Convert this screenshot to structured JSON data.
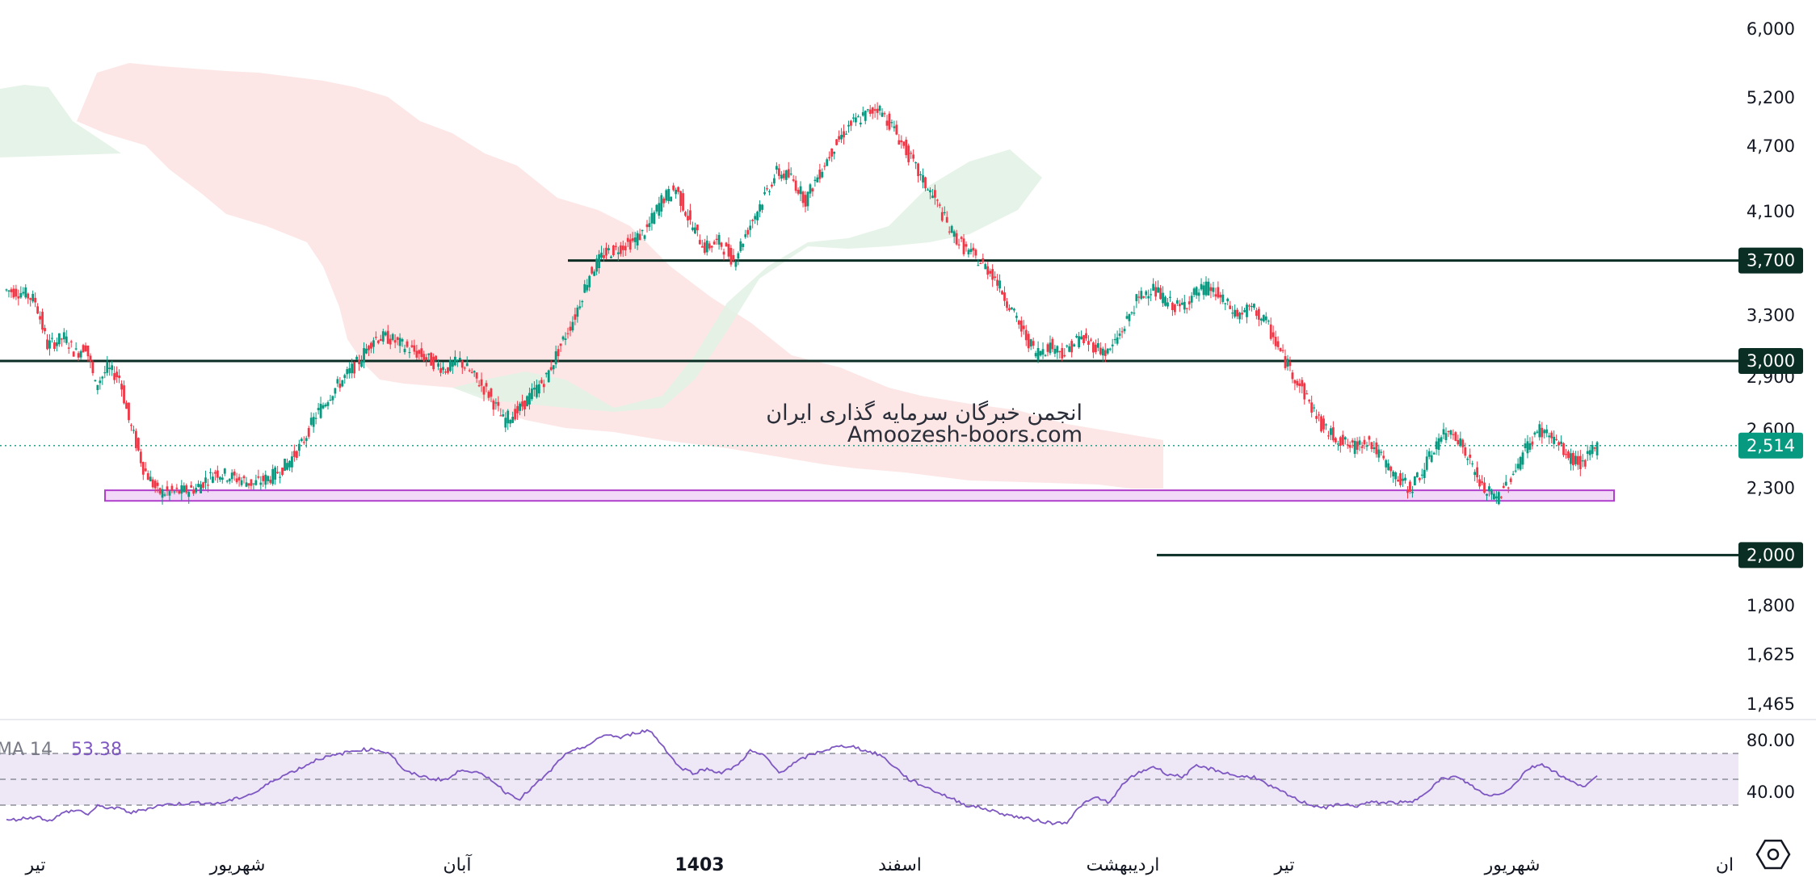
{
  "chart_data": {
    "type": "candlestick",
    "title": "",
    "watermark": {
      "line1": "انجمن خبرگان سرمایه گذاری ایران",
      "line2": "Amoozesh-boors.com"
    },
    "y_axis": {
      "scale": "log",
      "range": [
        1400,
        6300
      ],
      "ticks": [
        "6,000",
        "5,200",
        "4,700",
        "4,100",
        "3,300",
        "2,900",
        "2,600",
        "2,300",
        "1,800",
        "1,625",
        "1,465"
      ]
    },
    "x_axis": {
      "labels": [
        "تیر",
        "شهریور",
        "آبان",
        "1403",
        "اسفند",
        "اردیبهشت",
        "تیر",
        "شهریور",
        "ان"
      ],
      "bold_label": "1403"
    },
    "last_price": {
      "value": 2514,
      "label": "2,514",
      "color": "#089981"
    },
    "levels": [
      {
        "value": 3700,
        "label": "3,700"
      },
      {
        "value": 3000,
        "label": "3,000"
      },
      {
        "value": 2000,
        "label": "2,000"
      }
    ],
    "support_zone": {
      "low": 2240,
      "high": 2290,
      "color": "#e040fb"
    },
    "colors": {
      "up": "#089981",
      "down": "#f23645",
      "level": "#0b2e24",
      "cloud_bull": "#e3f2e5",
      "cloud_bear": "#fde3e3",
      "rsi_line": "#7e57c2",
      "rsi_band": "#ede7f6"
    },
    "price_series": [
      [
        0,
        3480
      ],
      [
        8,
        3460
      ],
      [
        13,
        3400
      ],
      [
        18,
        3100
      ],
      [
        25,
        3150
      ],
      [
        30,
        3050
      ],
      [
        34,
        3100
      ],
      [
        38,
        2850
      ],
      [
        43,
        2950
      ],
      [
        48,
        2900
      ],
      [
        52,
        2650
      ],
      [
        58,
        2400
      ],
      [
        64,
        2280
      ],
      [
        72,
        2280
      ],
      [
        80,
        2300
      ],
      [
        88,
        2380
      ],
      [
        96,
        2350
      ],
      [
        104,
        2320
      ],
      [
        112,
        2360
      ],
      [
        118,
        2420
      ],
      [
        124,
        2520
      ],
      [
        130,
        2680
      ],
      [
        136,
        2800
      ],
      [
        142,
        2900
      ],
      [
        148,
        3000
      ],
      [
        154,
        3150
      ],
      [
        160,
        3150
      ],
      [
        166,
        3100
      ],
      [
        172,
        3050
      ],
      [
        178,
        3000
      ],
      [
        184,
        2950
      ],
      [
        190,
        3000
      ],
      [
        196,
        2900
      ],
      [
        202,
        2800
      ],
      [
        208,
        2650
      ],
      [
        214,
        2700
      ],
      [
        220,
        2800
      ],
      [
        226,
        2900
      ],
      [
        232,
        3100
      ],
      [
        238,
        3300
      ],
      [
        244,
        3600
      ],
      [
        250,
        3750
      ],
      [
        256,
        3800
      ],
      [
        262,
        3850
      ],
      [
        268,
        3950
      ],
      [
        274,
        4200
      ],
      [
        280,
        4300
      ],
      [
        286,
        4000
      ],
      [
        292,
        3800
      ],
      [
        298,
        3850
      ],
      [
        304,
        3700
      ],
      [
        310,
        3950
      ],
      [
        316,
        4200
      ],
      [
        322,
        4450
      ],
      [
        328,
        4400
      ],
      [
        334,
        4200
      ],
      [
        340,
        4450
      ],
      [
        346,
        4700
      ],
      [
        352,
        4900
      ],
      [
        358,
        5000
      ],
      [
        364,
        5100
      ],
      [
        370,
        4900
      ],
      [
        376,
        4650
      ],
      [
        382,
        4400
      ],
      [
        388,
        4200
      ],
      [
        394,
        3950
      ],
      [
        400,
        3800
      ],
      [
        406,
        3700
      ],
      [
        412,
        3600
      ],
      [
        418,
        3400
      ],
      [
        424,
        3200
      ],
      [
        430,
        3050
      ],
      [
        436,
        3100
      ],
      [
        442,
        3050
      ],
      [
        448,
        3150
      ],
      [
        454,
        3100
      ],
      [
        460,
        3050
      ],
      [
        466,
        3200
      ],
      [
        472,
        3400
      ],
      [
        478,
        3500
      ],
      [
        484,
        3400
      ],
      [
        490,
        3350
      ],
      [
        496,
        3450
      ],
      [
        502,
        3500
      ],
      [
        508,
        3400
      ],
      [
        514,
        3300
      ],
      [
        520,
        3350
      ],
      [
        526,
        3250
      ],
      [
        532,
        3050
      ],
      [
        538,
        2900
      ],
      [
        544,
        2750
      ],
      [
        550,
        2600
      ],
      [
        556,
        2550
      ],
      [
        562,
        2500
      ],
      [
        568,
        2550
      ],
      [
        574,
        2450
      ],
      [
        580,
        2350
      ],
      [
        586,
        2300
      ],
      [
        592,
        2400
      ],
      [
        598,
        2550
      ],
      [
        604,
        2600
      ],
      [
        610,
        2450
      ],
      [
        616,
        2300
      ],
      [
        622,
        2250
      ],
      [
        628,
        2350
      ],
      [
        634,
        2500
      ],
      [
        640,
        2600
      ],
      [
        646,
        2550
      ],
      [
        652,
        2450
      ],
      [
        658,
        2420
      ],
      [
        664,
        2514
      ]
    ],
    "ichimoku_cloud_note": "bullish (green) and bearish (red) kumo segments shown",
    "rsi": {
      "label": "MA 14",
      "value": "53.38",
      "ticks": [
        "80.00",
        "40.00"
      ],
      "band": [
        30,
        70
      ],
      "mid": 50,
      "series": [
        [
          0,
          18
        ],
        [
          8,
          20
        ],
        [
          13,
          21
        ],
        [
          18,
          18
        ],
        [
          25,
          25
        ],
        [
          30,
          26
        ],
        [
          34,
          23
        ],
        [
          38,
          29
        ],
        [
          43,
          28
        ],
        [
          48,
          27
        ],
        [
          52,
          24
        ],
        [
          58,
          27
        ],
        [
          64,
          30
        ],
        [
          72,
          31
        ],
        [
          80,
          32
        ],
        [
          88,
          31
        ],
        [
          96,
          35
        ],
        [
          104,
          40
        ],
        [
          112,
          50
        ],
        [
          118,
          55
        ],
        [
          124,
          60
        ],
        [
          130,
          66
        ],
        [
          136,
          68
        ],
        [
          142,
          71
        ],
        [
          148,
          73
        ],
        [
          154,
          73
        ],
        [
          160,
          70
        ],
        [
          166,
          56
        ],
        [
          172,
          53
        ],
        [
          178,
          50
        ],
        [
          184,
          50
        ],
        [
          190,
          58
        ],
        [
          196,
          55
        ],
        [
          202,
          50
        ],
        [
          208,
          40
        ],
        [
          214,
          35
        ],
        [
          220,
          45
        ],
        [
          226,
          55
        ],
        [
          232,
          68
        ],
        [
          238,
          73
        ],
        [
          244,
          78
        ],
        [
          250,
          85
        ],
        [
          256,
          82
        ],
        [
          262,
          86
        ],
        [
          268,
          88
        ],
        [
          274,
          75
        ],
        [
          280,
          60
        ],
        [
          286,
          55
        ],
        [
          292,
          58
        ],
        [
          298,
          55
        ],
        [
          304,
          60
        ],
        [
          310,
          72
        ],
        [
          316,
          68
        ],
        [
          322,
          55
        ],
        [
          328,
          62
        ],
        [
          334,
          68
        ],
        [
          340,
          72
        ],
        [
          346,
          75
        ],
        [
          352,
          76
        ],
        [
          358,
          72
        ],
        [
          364,
          69
        ],
        [
          370,
          60
        ],
        [
          376,
          50
        ],
        [
          382,
          45
        ],
        [
          388,
          40
        ],
        [
          394,
          35
        ],
        [
          400,
          30
        ],
        [
          406,
          28
        ],
        [
          412,
          25
        ],
        [
          418,
          22
        ],
        [
          424,
          20
        ],
        [
          430,
          18
        ],
        [
          436,
          16
        ],
        [
          442,
          17
        ],
        [
          448,
          30
        ],
        [
          454,
          36
        ],
        [
          460,
          32
        ],
        [
          466,
          48
        ],
        [
          472,
          55
        ],
        [
          478,
          60
        ],
        [
          484,
          54
        ],
        [
          490,
          52
        ],
        [
          496,
          60
        ],
        [
          502,
          58
        ],
        [
          508,
          55
        ],
        [
          514,
          52
        ],
        [
          520,
          52
        ],
        [
          526,
          45
        ],
        [
          532,
          40
        ],
        [
          538,
          34
        ],
        [
          544,
          30
        ],
        [
          550,
          28
        ],
        [
          556,
          31
        ],
        [
          562,
          29
        ],
        [
          568,
          32
        ],
        [
          574,
          32
        ],
        [
          580,
          32
        ],
        [
          586,
          32
        ],
        [
          592,
          41
        ],
        [
          598,
          50
        ],
        [
          604,
          52
        ],
        [
          610,
          46
        ],
        [
          616,
          38
        ],
        [
          622,
          38
        ],
        [
          628,
          45
        ],
        [
          634,
          58
        ],
        [
          640,
          62
        ],
        [
          646,
          55
        ],
        [
          652,
          48
        ],
        [
          658,
          45
        ],
        [
          664,
          53
        ]
      ]
    }
  }
}
